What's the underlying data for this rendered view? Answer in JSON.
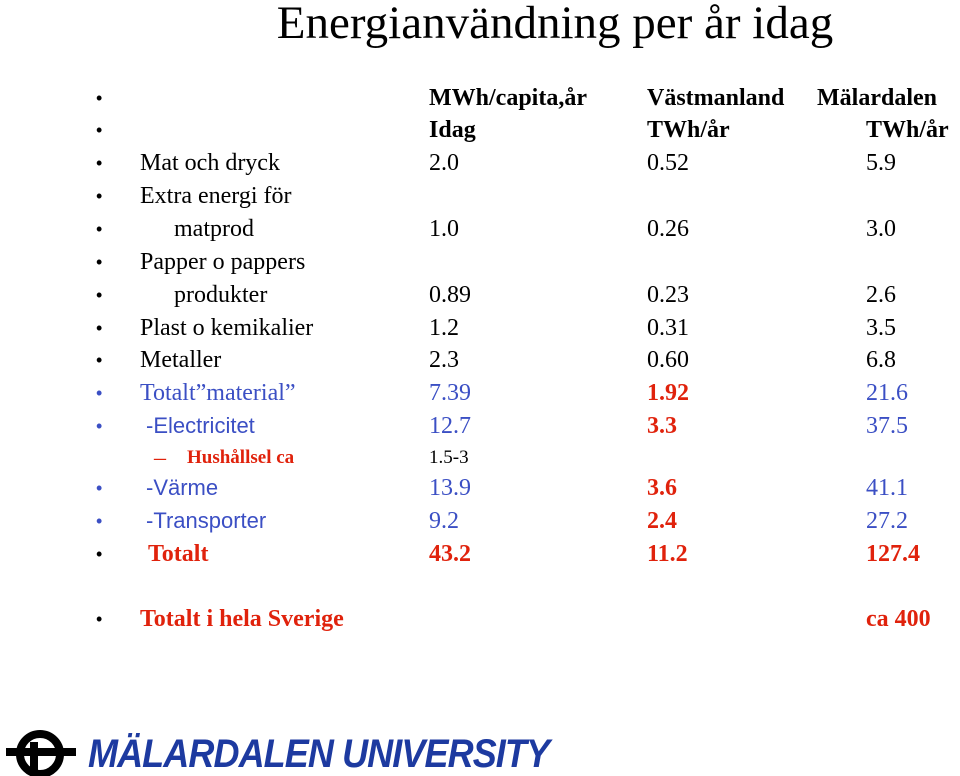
{
  "title": "Energianvändning per år idag",
  "bullet": "•",
  "dash": "–",
  "header1": {
    "c1": "MWh/capita,år",
    "c2": "Västmanland",
    "c3": "Mälardalen"
  },
  "header2": {
    "c1": "Idag",
    "c2": "TWh/år",
    "c3": "TWh/år"
  },
  "rows": [
    {
      "label": "Mat och dryck",
      "c1": "2.0",
      "c2": "0.52",
      "c3": "5.9"
    },
    {
      "label": "Extra energi för",
      "c1": "",
      "c2": "",
      "c3": ""
    },
    {
      "label": "matprod",
      "c1": "1.0",
      "c2": "0.26",
      "c3": "3.0"
    },
    {
      "label": "Papper o pappers",
      "c1": "",
      "c2": "",
      "c3": ""
    },
    {
      "label": "produkter",
      "c1": "0.89",
      "c2": "0.23",
      "c3": "2.6"
    },
    {
      "label": "Plast o kemikalier",
      "c1": "1.2",
      "c2": "0.31",
      "c3": "3.5"
    },
    {
      "label": "Metaller",
      "c1": "2.3",
      "c2": "0.60",
      "c3": "6.8"
    },
    {
      "label": "Totalt”material”",
      "c1": "7.39",
      "c2": "1.92",
      "c3": "21.6"
    },
    {
      "label": "-Electricitet",
      "c1": "12.7",
      "c2": "3.3",
      "c3": "37.5"
    },
    {
      "label": "Hushållsel ca",
      "c1": "1.5-3",
      "c2": "",
      "c3": ""
    },
    {
      "label": "-Värme",
      "c1": "13.9",
      "c2": "3.6",
      "c3": "41.1"
    },
    {
      "label": "-Transporter",
      "c1": "9.2",
      "c2": "2.4",
      "c3": "27.2"
    },
    {
      "label": "Totalt",
      "c1": "43.2",
      "c2": "11.2",
      "c3": "127.4"
    }
  ],
  "sweden": {
    "label": "Totalt i hela Sverige",
    "value": "ca 400"
  },
  "logo": {
    "text": "MÄLARDALEN UNIVERSITY",
    "color": "#1d3aa0"
  },
  "colors": {
    "blue": "#3b4fc4",
    "red": "#e0220c"
  }
}
